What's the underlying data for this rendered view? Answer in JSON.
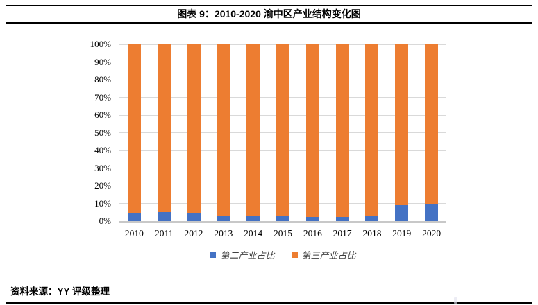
{
  "header": {
    "title": "图表 9：2010-2020 渝中区产业结构变化图"
  },
  "footer": {
    "source": "资料来源：YY 评级整理"
  },
  "chart_data": {
    "type": "bar",
    "stacked": true,
    "stacking": "percent",
    "title": "",
    "xlabel": "",
    "ylabel": "",
    "categories": [
      "2010",
      "2011",
      "2012",
      "2013",
      "2014",
      "2015",
      "2016",
      "2017",
      "2018",
      "2019",
      "2020"
    ],
    "series": [
      {
        "name": "第二产业占比",
        "color": "#4472C4",
        "values": [
          4.6,
          5.1,
          4.6,
          3.2,
          3.3,
          2.6,
          2.5,
          2.5,
          2.8,
          9.0,
          9.4
        ]
      },
      {
        "name": "第三产业占比",
        "color": "#ED7D31",
        "values": [
          95.4,
          94.9,
          95.4,
          96.8,
          96.7,
          97.4,
          97.5,
          97.5,
          97.2,
          91.0,
          90.6
        ]
      }
    ],
    "ylim": [
      0,
      100
    ],
    "yticks": [
      "0%",
      "10%",
      "20%",
      "30%",
      "40%",
      "50%",
      "60%",
      "70%",
      "80%",
      "90%",
      "100%"
    ],
    "grid": true,
    "gridline_color": "#D9D9D9",
    "axis_line_color": "#C8C8C8",
    "legend_position": "bottom"
  }
}
